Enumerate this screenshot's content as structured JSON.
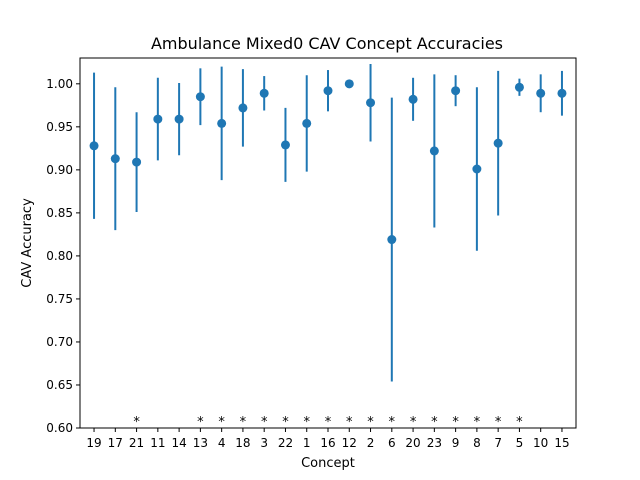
{
  "chart_data": {
    "type": "scatter",
    "title": "Ambulance Mixed0 CAV Concept Accuracies",
    "xlabel": "Concept",
    "ylabel": "CAV Accuracy",
    "ylim": [
      0.6,
      1.03
    ],
    "yticks": [
      "0.60",
      "0.65",
      "0.70",
      "0.75",
      "0.80",
      "0.85",
      "0.90",
      "0.95",
      "1.00"
    ],
    "grid": false,
    "legend": "none",
    "color": "#1f77b4",
    "significance_marker": "*",
    "categories": [
      "19",
      "17",
      "21",
      "11",
      "14",
      "13",
      "4",
      "18",
      "3",
      "22",
      "1",
      "16",
      "12",
      "2",
      "6",
      "20",
      "23",
      "9",
      "8",
      "7",
      "5",
      "10",
      "15"
    ],
    "values": [
      0.928,
      0.913,
      0.909,
      0.959,
      0.959,
      0.985,
      0.954,
      0.972,
      0.989,
      0.929,
      0.954,
      0.992,
      1.0,
      0.978,
      0.819,
      0.982,
      0.922,
      0.992,
      0.901,
      0.931,
      0.996,
      0.989,
      0.989
    ],
    "errors": [
      0.085,
      0.083,
      0.058,
      0.048,
      0.042,
      0.033,
      0.066,
      0.045,
      0.02,
      0.043,
      0.056,
      0.024,
      0.002,
      0.045,
      0.165,
      0.025,
      0.089,
      0.018,
      0.095,
      0.084,
      0.01,
      0.022,
      0.026
    ],
    "significant": [
      false,
      false,
      true,
      false,
      false,
      true,
      true,
      true,
      true,
      true,
      true,
      true,
      true,
      true,
      true,
      true,
      true,
      true,
      true,
      true,
      true,
      false,
      false
    ]
  }
}
